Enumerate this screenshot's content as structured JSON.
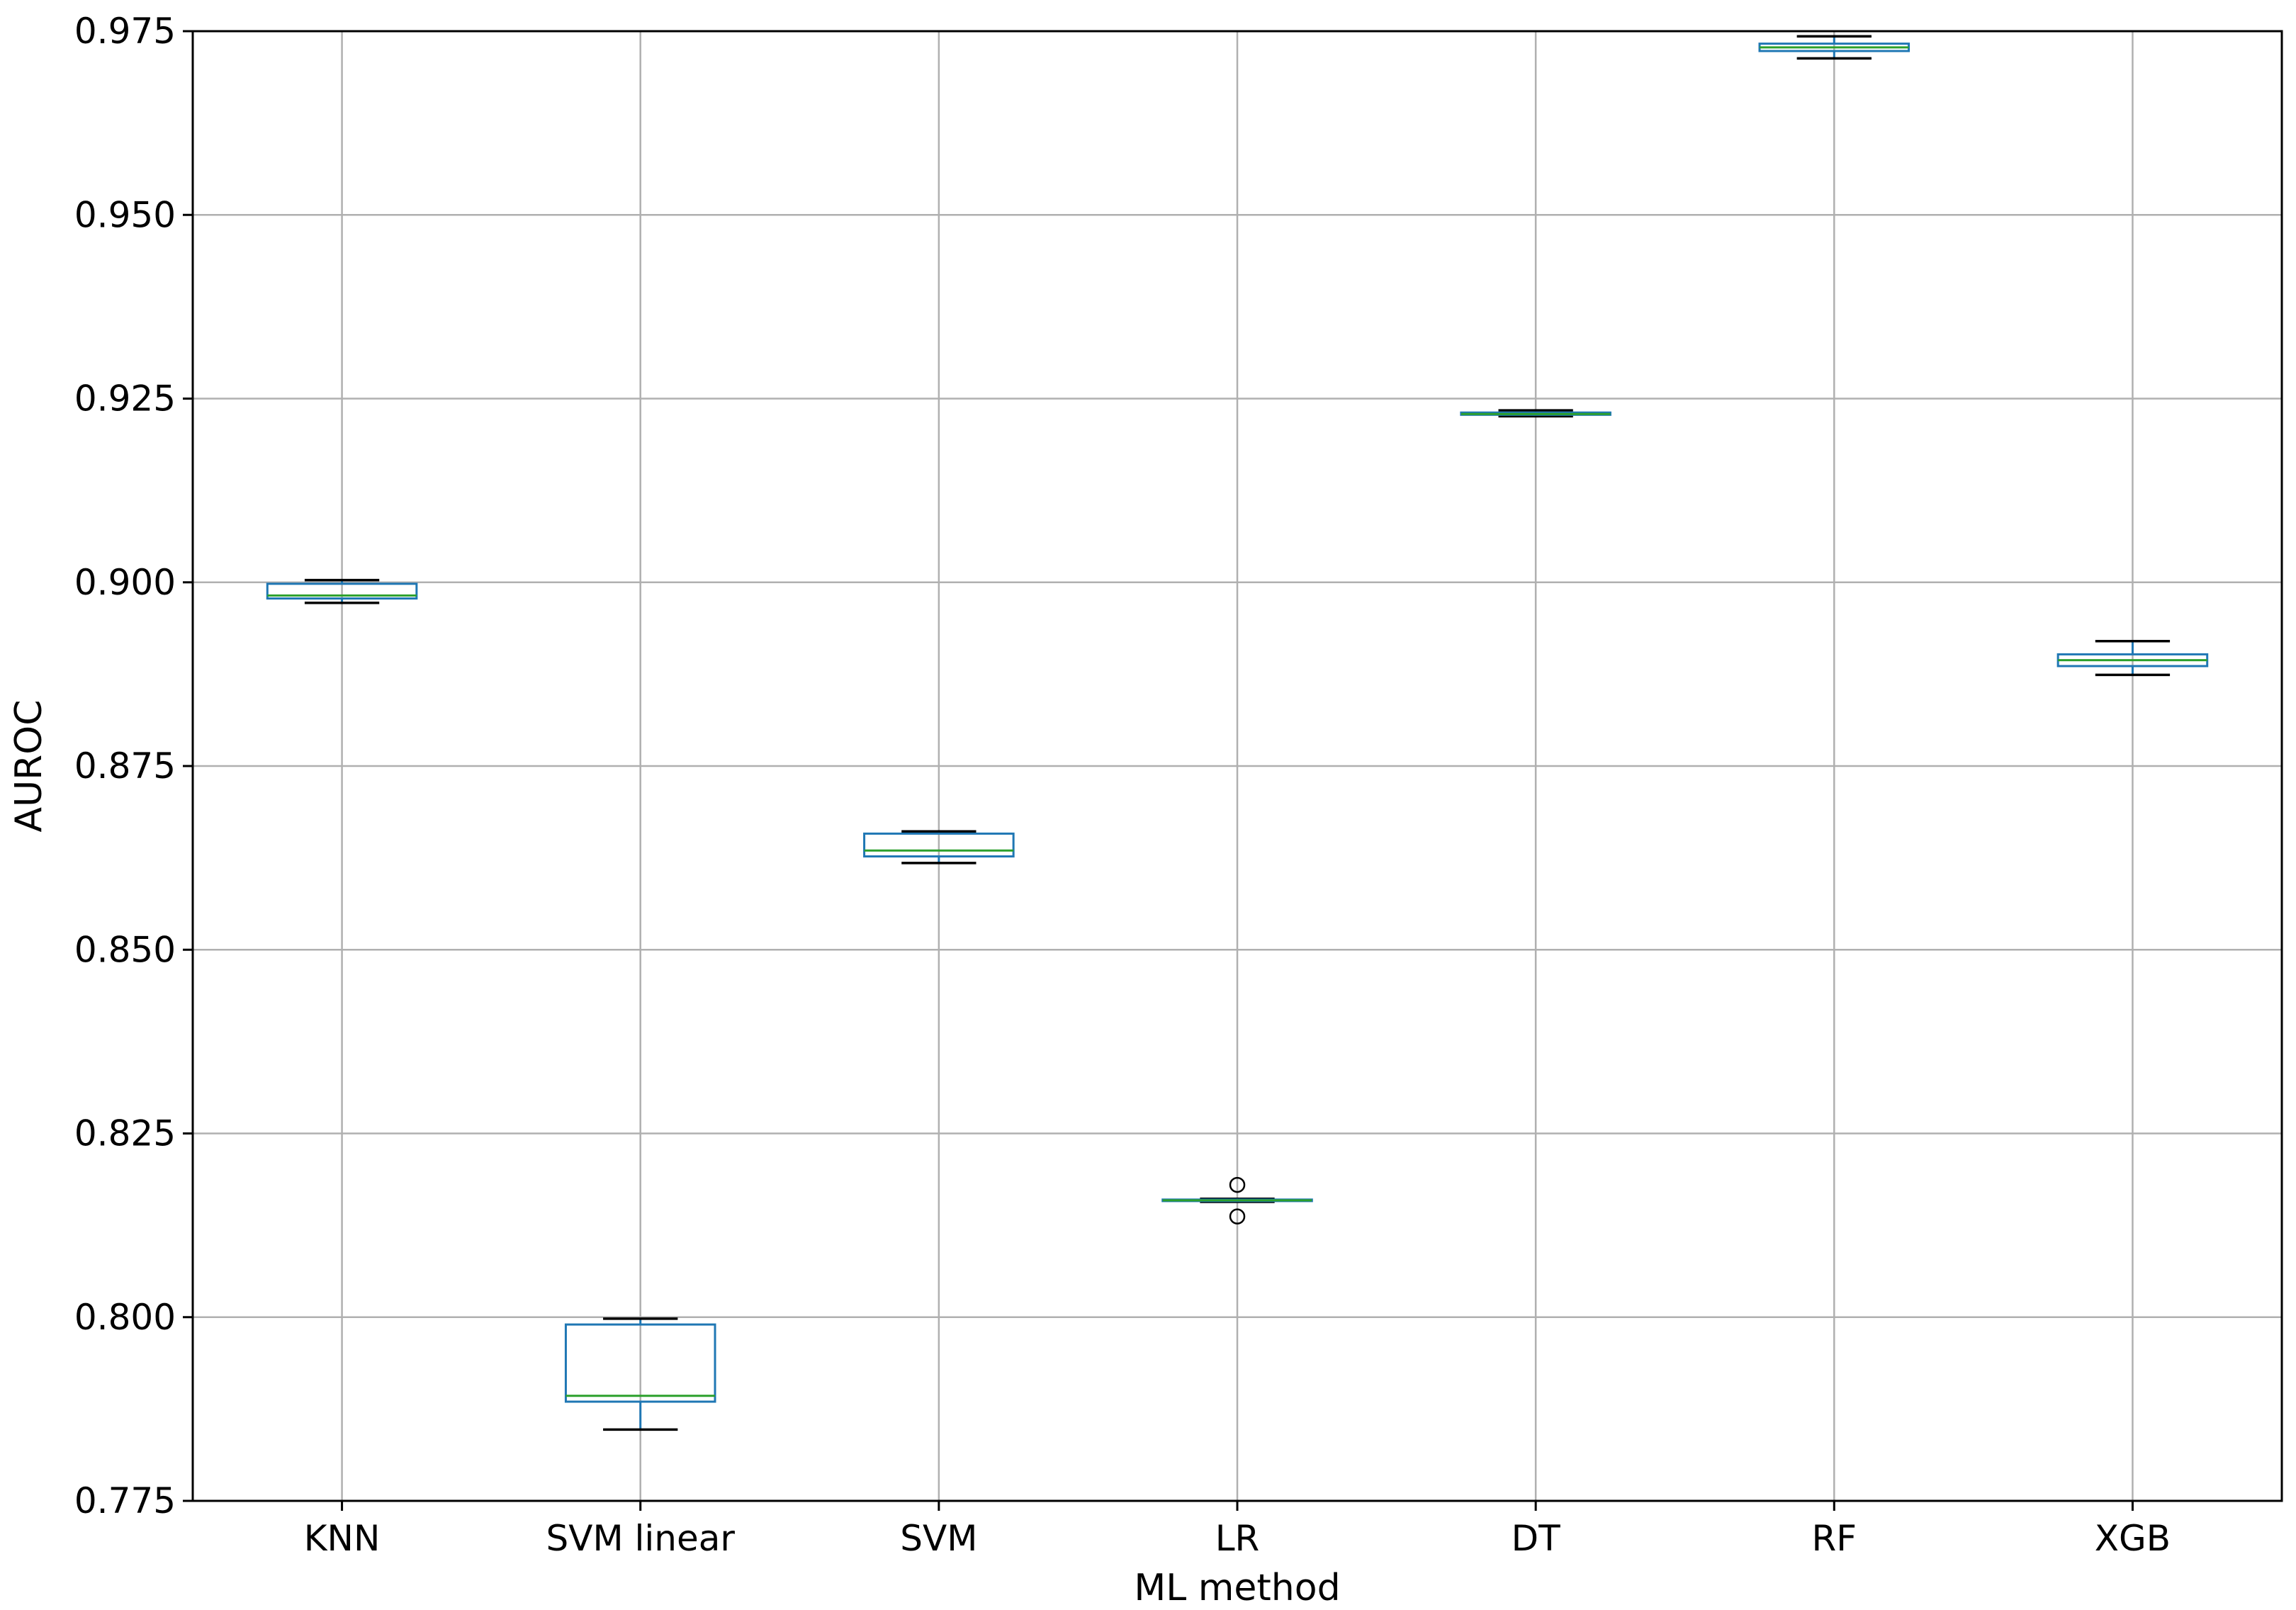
{
  "chart_data": {
    "type": "box",
    "title": "",
    "xlabel": "ML method",
    "ylabel": "AUROC",
    "ylim": [
      0.775,
      0.975
    ],
    "yticks": [
      0.775,
      0.8,
      0.825,
      0.85,
      0.875,
      0.9,
      0.925,
      0.95,
      0.975
    ],
    "ytick_labels": [
      "0.775",
      "0.800",
      "0.825",
      "0.850",
      "0.875",
      "0.900",
      "0.925",
      "0.950",
      "0.975"
    ],
    "grid": true,
    "categories": [
      "KNN",
      "SVM linear",
      "SVM",
      "LR",
      "DT",
      "RF",
      "XGB"
    ],
    "boxes": [
      {
        "name": "KNN",
        "whisker_low": 0.8972,
        "q1": 0.8978,
        "median": 0.8982,
        "q3": 0.8998,
        "whisker_high": 0.9003,
        "outliers": []
      },
      {
        "name": "SVM linear",
        "whisker_low": 0.7847,
        "q1": 0.7885,
        "median": 0.7893,
        "q3": 0.799,
        "whisker_high": 0.7998,
        "outliers": []
      },
      {
        "name": "SVM",
        "whisker_low": 0.8618,
        "q1": 0.8627,
        "median": 0.8635,
        "q3": 0.8658,
        "whisker_high": 0.8661,
        "outliers": []
      },
      {
        "name": "LR",
        "whisker_low": 0.8157,
        "q1": 0.8158,
        "median": 0.8159,
        "q3": 0.816,
        "whisker_high": 0.8161,
        "outliers": [
          0.818,
          0.8137
        ]
      },
      {
        "name": "DT",
        "whisker_low": 0.9226,
        "q1": 0.9228,
        "median": 0.9229,
        "q3": 0.9231,
        "whisker_high": 0.9234,
        "outliers": []
      },
      {
        "name": "RF",
        "whisker_low": 0.9713,
        "q1": 0.9723,
        "median": 0.9728,
        "q3": 0.9733,
        "whisker_high": 0.9743,
        "outliers": []
      },
      {
        "name": "XGB",
        "whisker_low": 0.8874,
        "q1": 0.8886,
        "median": 0.8894,
        "q3": 0.8902,
        "whisker_high": 0.892,
        "outliers": []
      }
    ],
    "colors": {
      "box": "#1f77b4",
      "median": "#2ca02c",
      "whisker": "#000000",
      "grid": "#b0b0b0",
      "axis": "#000000",
      "outlier": "#000000"
    }
  }
}
